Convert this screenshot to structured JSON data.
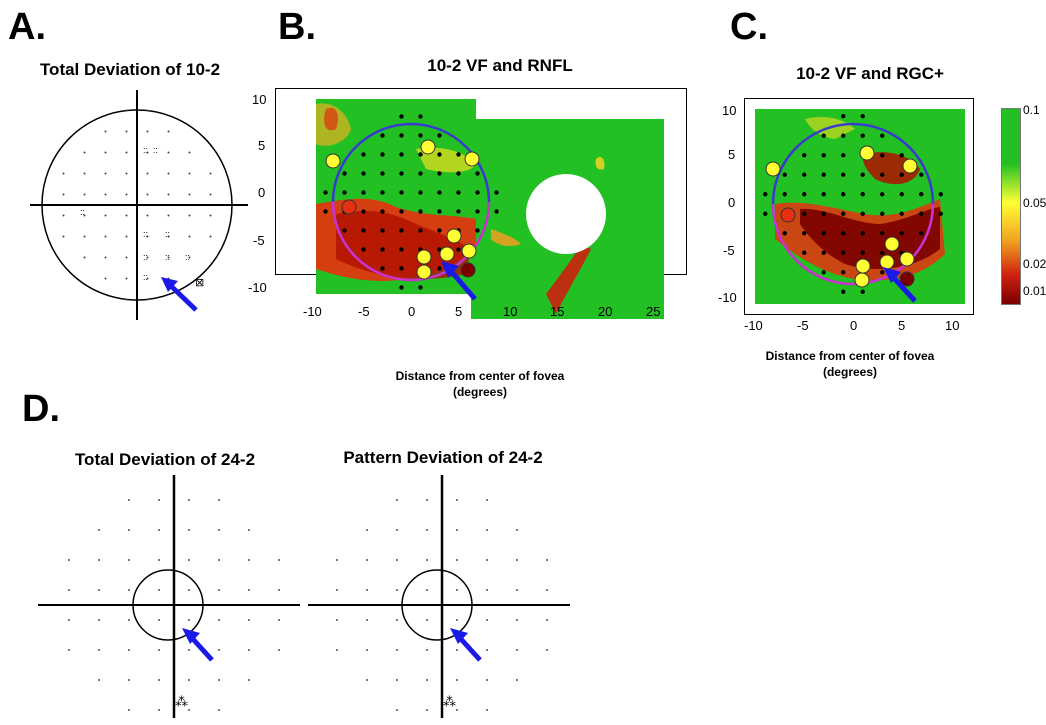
{
  "panels": {
    "a": {
      "letter": "A.",
      "title": "Total Deviation of 10-2"
    },
    "b": {
      "letter": "B.",
      "title": "10-2 VF and RNFL",
      "xlabel_line1": "Distance from center of fovea",
      "xlabel_line2": "(degrees)",
      "x_ticks": [
        "-10",
        "-5",
        "0",
        "5",
        "10",
        "15",
        "20",
        "25"
      ],
      "y_ticks": [
        "10",
        "5",
        "0",
        "-5",
        "-10"
      ]
    },
    "c": {
      "letter": "C.",
      "title": "10-2 VF and RGC+",
      "xlabel_line1": "Distance from center of fovea",
      "xlabel_line2": "(degrees)",
      "x_ticks": [
        "-10",
        "-5",
        "0",
        "5",
        "10"
      ],
      "y_ticks": [
        "10",
        "5",
        "0",
        "-5",
        "-10"
      ],
      "colorbar_ticks": [
        "0.1",
        "0.05",
        "0.02",
        "0.01"
      ]
    },
    "d": {
      "letter": "D.",
      "title_left": "Total Deviation of 24-2",
      "title_right": "Pattern Deviation of 24-2"
    }
  },
  "colors": {
    "green": "#22c022",
    "yellow": "#ffff33",
    "red": "#e83010",
    "darkred": "#7a0000",
    "arrow": "#1a1ae6",
    "circle_blue": "#3a3ad0",
    "circle_magenta": "#cc33cc"
  }
}
